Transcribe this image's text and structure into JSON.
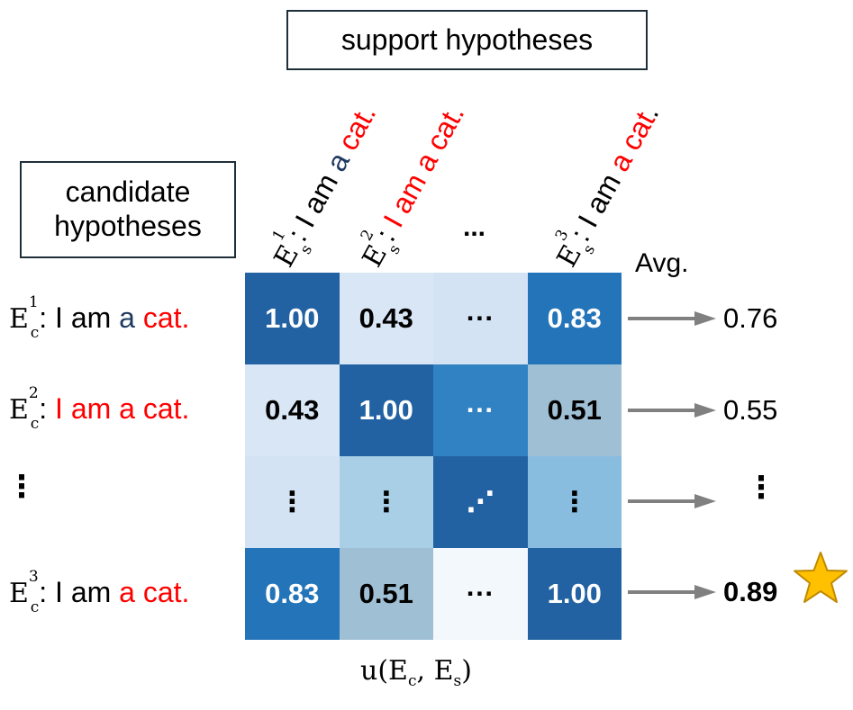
{
  "support_box": {
    "label": "support hypotheses"
  },
  "candidate_box": {
    "line1": "candidate",
    "line2": "hypotheses"
  },
  "symbols": {
    "E": "E",
    "sub_s": "s",
    "sub_c": "c",
    "sup1": "1",
    "sup2": "2",
    "sup3": "3",
    "colon": ":"
  },
  "column_labels": [
    {
      "segments": [
        {
          "text": " I am ",
          "color": "#000000"
        },
        {
          "text": "a ",
          "color": "#1f3a5f"
        },
        {
          "text": "cat.",
          "color": "#ff0000"
        }
      ]
    },
    {
      "segments": [
        {
          "text": " I am a cat.",
          "color": "#ff0000"
        }
      ]
    },
    {
      "segments": [
        {
          "text": " I am ",
          "color": "#000000"
        },
        {
          "text": "a cat",
          "color": "#ff0000"
        },
        {
          "text": ".",
          "color": "#000000"
        }
      ]
    }
  ],
  "column_ellipsis": "...",
  "avg_label": "Avg.",
  "row_labels": [
    {
      "segments": [
        {
          "text": " I am ",
          "color": "#000000"
        },
        {
          "text": "a ",
          "color": "#1f3a5f"
        },
        {
          "text": "cat.",
          "color": "#ff0000"
        }
      ]
    },
    {
      "segments": [
        {
          "text": " I am a cat.",
          "color": "#ff0000"
        }
      ]
    },
    {
      "segments": [
        {
          "text": " I am ",
          "color": "#000000"
        },
        {
          "text": "a cat.",
          "color": "#ff0000"
        }
      ]
    }
  ],
  "row_dots": "⋮",
  "matrix": {
    "rows": [
      [
        {
          "text": "1.00",
          "color": "#2262a2",
          "dark": true
        },
        {
          "text": "0.43",
          "color": "#d8e6f5",
          "dark": false
        },
        {
          "text": "···",
          "color": "#d4e3f4",
          "dark": false
        },
        {
          "text": "0.83",
          "color": "#2474b9",
          "dark": true
        }
      ],
      [
        {
          "text": "0.43",
          "color": "#d8e6f5",
          "dark": false
        },
        {
          "text": "1.00",
          "color": "#2262a2",
          "dark": true
        },
        {
          "text": "···",
          "color": "#3182c2",
          "dark": true
        },
        {
          "text": "0.51",
          "color": "#9fbfd5",
          "dark": false
        }
      ],
      [
        {
          "text": "⋮",
          "color": "#d4e3f4",
          "dark": false
        },
        {
          "text": "⋮",
          "color": "#a9cfe6",
          "dark": false
        },
        {
          "text": "⋰",
          "color": "#2262a2",
          "dark": true
        },
        {
          "text": "⋮",
          "color": "#89bddf",
          "dark": false
        }
      ],
      [
        {
          "text": "0.83",
          "color": "#2474b9",
          "dark": true
        },
        {
          "text": "0.51",
          "color": "#9fbfd5",
          "dark": false
        },
        {
          "text": "···",
          "color": "#f3f8fd",
          "dark": false
        },
        {
          "text": "1.00",
          "color": "#2262a2",
          "dark": true
        }
      ]
    ]
  },
  "averages": [
    "0.76",
    "0.55",
    "⋮",
    "0.89"
  ],
  "xlabel": {
    "u": "u",
    "E": "E",
    "c": "c",
    "s": "s",
    "open": "(",
    "comma": ", ",
    "close": ")"
  },
  "colors": {
    "arrow": "#808080",
    "star_fill": "#ffc000",
    "star_stroke": "#c08a00",
    "box_border": "#1f2f3a"
  }
}
